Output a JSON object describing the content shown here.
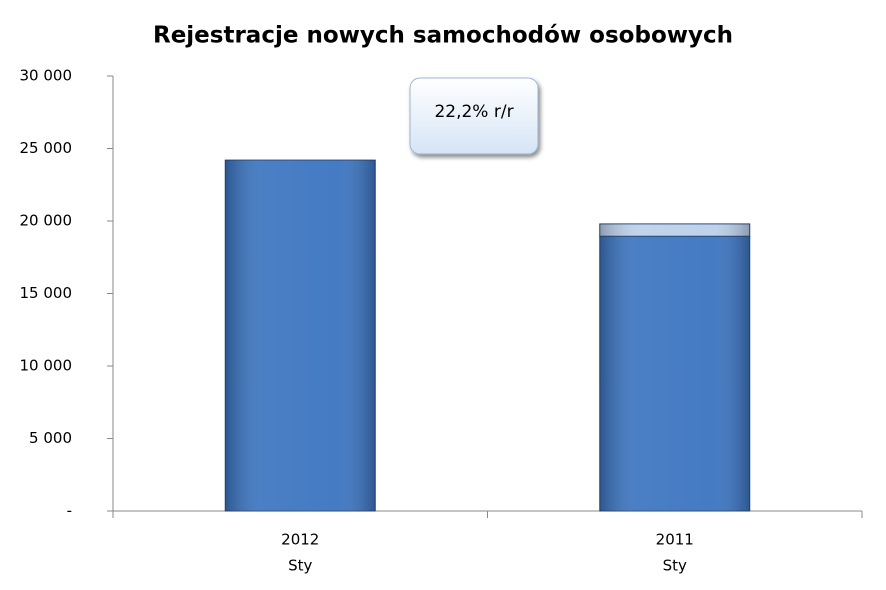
{
  "chart_data": {
    "type": "stacked-bar",
    "title": "Rejestracje nowych samochodów osobowych",
    "categories": [
      "2012",
      "2011"
    ],
    "subcategories": [
      "Sty",
      "Sty"
    ],
    "series": [
      {
        "color": "#3b74c0",
        "values": [
          24200,
          18950
        ]
      },
      {
        "color": "#bcd0ea",
        "values": [
          null,
          850
        ]
      }
    ],
    "ylim": [
      0,
      30000
    ],
    "yticks": [
      {
        "value": 0,
        "label": "-"
      },
      {
        "value": 5000,
        "label": "5 000"
      },
      {
        "value": 10000,
        "label": "10 000"
      },
      {
        "value": 15000,
        "label": "15 000"
      },
      {
        "value": 20000,
        "label": "20 000"
      },
      {
        "value": 25000,
        "label": "25 000"
      },
      {
        "value": 30000,
        "label": "30 000"
      }
    ],
    "annotation": "22,2% r/r",
    "grid": false
  }
}
